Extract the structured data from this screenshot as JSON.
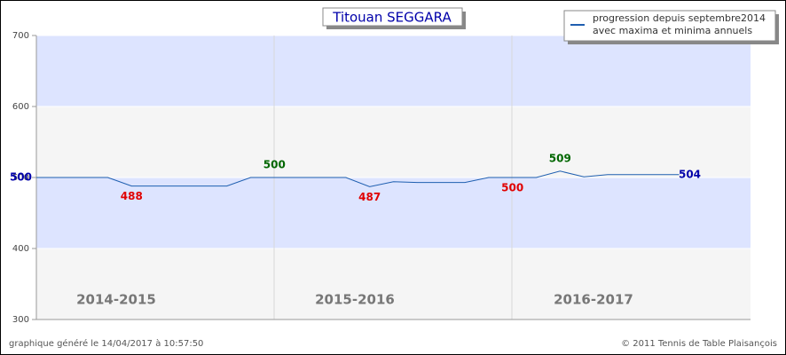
{
  "chart_data": {
    "type": "line",
    "title": "Titouan SEGGARA",
    "x": [
      0,
      1,
      2,
      3,
      4,
      5,
      6,
      7,
      8,
      9,
      10,
      11,
      12,
      13,
      14,
      15,
      16,
      17,
      18,
      19,
      20,
      21,
      22,
      23,
      24,
      25,
      26,
      27
    ],
    "xlim": [
      0,
      30
    ],
    "series": [
      {
        "name": "progression depuis septembre2014 avec maxima et minima annuels",
        "color": "#1f5fb0",
        "values": [
          500,
          500,
          500,
          500,
          488,
          488,
          488,
          488,
          488,
          500,
          500,
          500,
          500,
          500,
          487,
          494,
          493,
          493,
          493,
          500,
          500,
          500,
          509,
          501,
          504,
          504,
          504,
          504
        ]
      }
    ],
    "ylim": [
      300,
      700
    ],
    "yticks": [
      300,
      400,
      500,
      600,
      700
    ],
    "annotations": [
      {
        "x": 4,
        "value": 488,
        "color": "#e00000"
      },
      {
        "x": 10,
        "value": 500,
        "color": "#006600"
      },
      {
        "x": 14,
        "value": 487,
        "color": "#e00000"
      },
      {
        "x": 20,
        "value": 500,
        "color": "#e00000"
      },
      {
        "x": 22,
        "value": 509,
        "color": "#006600"
      },
      {
        "x": 27,
        "value": 504,
        "color": "#0000aa"
      }
    ],
    "current_value": 500,
    "periods": [
      "2014-2015",
      "2015-2016",
      "2016-2017"
    ],
    "footer_left": "graphique généré le 14/04/2017 à 10:57:50",
    "footer_right": "© 2011 Tennis de Table Plaisançois"
  }
}
